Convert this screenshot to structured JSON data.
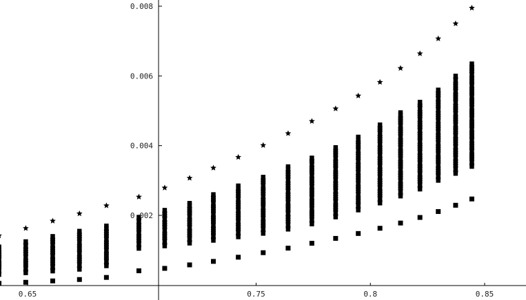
{
  "chart_data": {
    "type": "scatter",
    "title": "",
    "xlabel": "",
    "ylabel": "",
    "xlim": [
      0.635,
      0.862
    ],
    "ylim": [
      0.0,
      0.0082
    ],
    "grid": false,
    "x_ticks": [
      {
        "value": 0.65,
        "label": "0.65"
      },
      {
        "value": 0.75,
        "label": "0.75"
      },
      {
        "value": 0.8,
        "label": "0.8"
      },
      {
        "value": 0.85,
        "label": "0.85"
      }
    ],
    "y_ticks": [
      {
        "value": 0.002,
        "label": "0.002"
      },
      {
        "value": 0.004,
        "label": "0.004"
      },
      {
        "value": 0.006,
        "label": "0.006"
      },
      {
        "value": 0.008,
        "label": "0.008"
      }
    ],
    "columns": [
      {
        "x": 0.6375,
        "upper": 0.00142,
        "band_low": 0.0003,
        "band_high": 0.0011,
        "lower": 5e-05
      },
      {
        "x": 0.6492,
        "upper": 0.00163,
        "band_low": 0.00035,
        "band_high": 0.00125,
        "lower": 8e-05
      },
      {
        "x": 0.661,
        "upper": 0.00184,
        "band_low": 0.0004,
        "band_high": 0.0014,
        "lower": 0.00012
      },
      {
        "x": 0.6727,
        "upper": 0.00205,
        "band_low": 0.00045,
        "band_high": 0.00155,
        "lower": 0.00016
      },
      {
        "x": 0.6845,
        "upper": 0.00228,
        "band_low": 0.00055,
        "band_high": 0.0017,
        "lower": 0.00022
      },
      {
        "x": 0.6987,
        "upper": 0.00253,
        "band_low": 0.00105,
        "band_high": 0.00195,
        "lower": 0.00041
      },
      {
        "x": 0.71,
        "upper": 0.00279,
        "band_low": 0.00112,
        "band_high": 0.00215,
        "lower": 0.00048
      },
      {
        "x": 0.7209,
        "upper": 0.00307,
        "band_low": 0.0012,
        "band_high": 0.00235,
        "lower": 0.00058
      },
      {
        "x": 0.7313,
        "upper": 0.00336,
        "band_low": 0.00128,
        "band_high": 0.0026,
        "lower": 0.00068
      },
      {
        "x": 0.7422,
        "upper": 0.00367,
        "band_low": 0.00138,
        "band_high": 0.00285,
        "lower": 0.0008
      },
      {
        "x": 0.7531,
        "upper": 0.00401,
        "band_low": 0.00148,
        "band_high": 0.0031,
        "lower": 0.00093
      },
      {
        "x": 0.764,
        "upper": 0.00435,
        "band_low": 0.0016,
        "band_high": 0.0034,
        "lower": 0.00106
      },
      {
        "x": 0.7744,
        "upper": 0.0047,
        "band_low": 0.00175,
        "band_high": 0.00365,
        "lower": 0.0012
      },
      {
        "x": 0.7848,
        "upper": 0.00506,
        "band_low": 0.00195,
        "band_high": 0.00395,
        "lower": 0.00134
      },
      {
        "x": 0.7947,
        "upper": 0.00543,
        "band_low": 0.00215,
        "band_high": 0.00425,
        "lower": 0.00148
      },
      {
        "x": 0.8042,
        "upper": 0.00582,
        "band_low": 0.00235,
        "band_high": 0.0046,
        "lower": 0.00163
      },
      {
        "x": 0.8132,
        "upper": 0.00622,
        "band_low": 0.00255,
        "band_high": 0.00495,
        "lower": 0.00178
      },
      {
        "x": 0.8217,
        "upper": 0.00664,
        "band_low": 0.00275,
        "band_high": 0.00525,
        "lower": 0.00194
      },
      {
        "x": 0.8297,
        "upper": 0.00707,
        "band_low": 0.003,
        "band_high": 0.0056,
        "lower": 0.00211
      },
      {
        "x": 0.8373,
        "upper": 0.0075,
        "band_low": 0.0032,
        "band_high": 0.006,
        "lower": 0.00229
      },
      {
        "x": 0.8444,
        "upper": 0.00795,
        "band_low": 0.0034,
        "band_high": 0.00635,
        "lower": 0.00247
      }
    ]
  }
}
